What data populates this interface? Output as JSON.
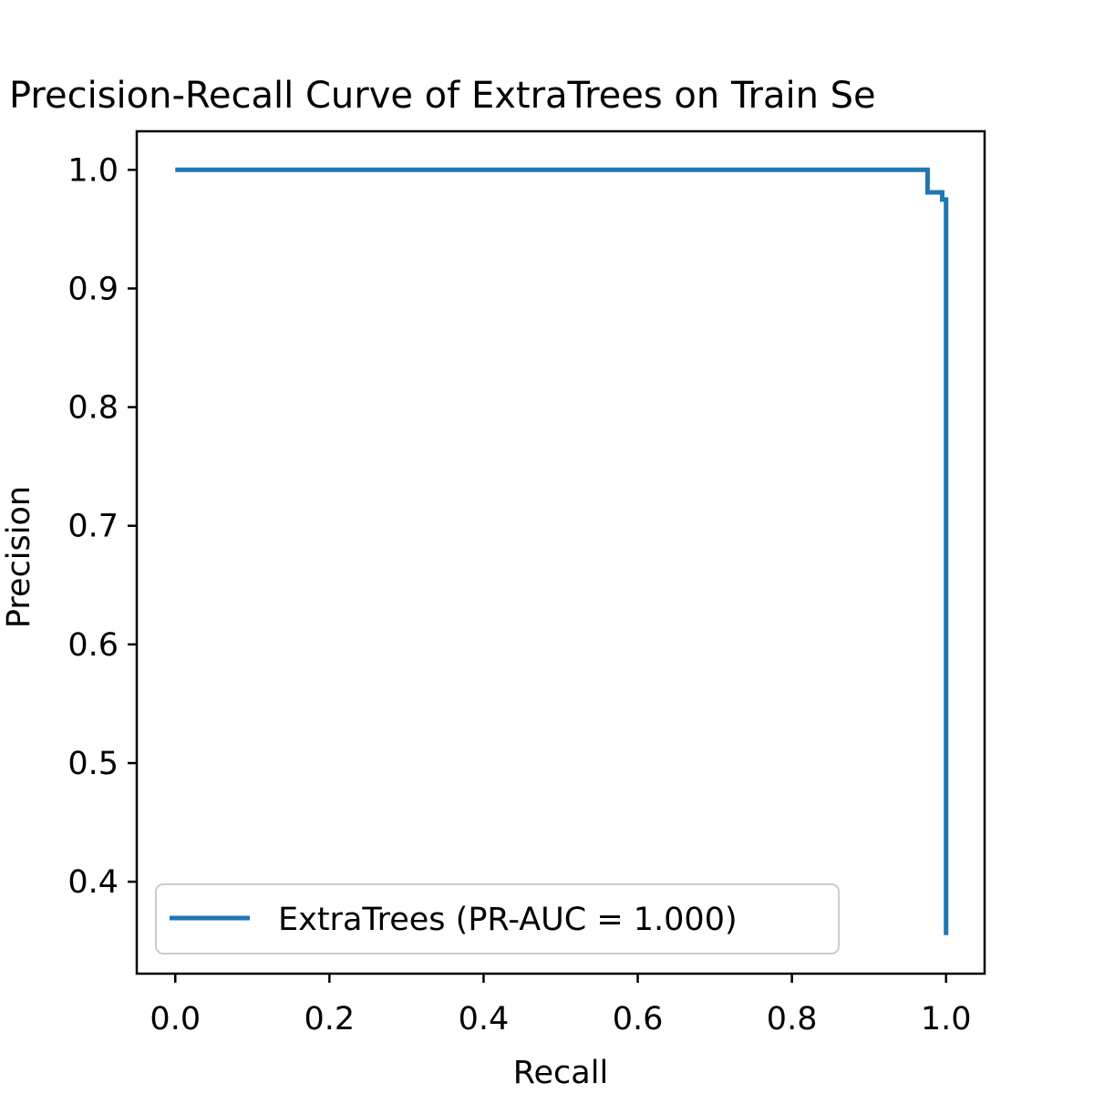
{
  "chart_data": {
    "type": "line",
    "title": "Precision-Recall Curve of ExtraTrees on Train Se",
    "xlabel": "Recall",
    "ylabel": "Precision",
    "xlim": [
      -0.05,
      1.05
    ],
    "ylim": [
      0.3225,
      1.0325
    ],
    "x_ticks": [
      0.0,
      0.2,
      0.4,
      0.6,
      0.8,
      1.0
    ],
    "x_tick_labels": [
      "0.0",
      "0.2",
      "0.4",
      "0.6",
      "0.8",
      "1.0"
    ],
    "y_ticks": [
      0.4,
      0.5,
      0.6,
      0.7,
      0.8,
      0.9,
      1.0
    ],
    "y_tick_labels": [
      "0.4",
      "0.5",
      "0.6",
      "0.7",
      "0.8",
      "0.9",
      "1.0"
    ],
    "grid": false,
    "legend_position": "lower-left",
    "series": [
      {
        "name": "ExtraTrees (PR-AUC = 1.000)",
        "color": "#1f77b4",
        "step": true,
        "points": [
          {
            "x": 0.0,
            "y": 1.0
          },
          {
            "x": 0.976,
            "y": 1.0
          },
          {
            "x": 0.976,
            "y": 0.981
          },
          {
            "x": 0.995,
            "y": 0.981
          },
          {
            "x": 0.995,
            "y": 0.975
          },
          {
            "x": 1.0,
            "y": 0.975
          },
          {
            "x": 1.0,
            "y": 0.355
          }
        ]
      }
    ]
  }
}
